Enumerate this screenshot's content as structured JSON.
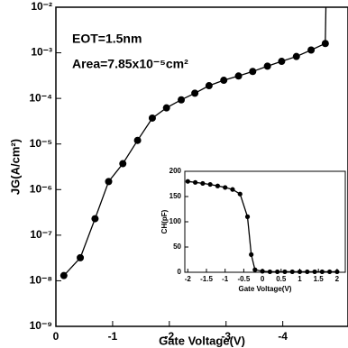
{
  "chart_data": [
    {
      "type": "line",
      "xlabel": "Gate Voltage(V)",
      "ylabel": "JG(A/cm²)",
      "annotations": [
        "EOT=1.5nm",
        "Area=7.85x10⁻⁵cm²"
      ],
      "xlim": [
        0,
        -5.15
      ],
      "xticks": [
        0,
        -1,
        -2,
        -3,
        -4
      ],
      "ylim": [
        1e-09,
        0.01
      ],
      "log_y": true,
      "yticks": [
        {
          "value": 1e-09,
          "label": "10⁻⁹"
        },
        {
          "value": 1e-08,
          "label": "10⁻⁸"
        },
        {
          "value": 1e-07,
          "label": "10⁻⁷"
        },
        {
          "value": 1e-06,
          "label": "10⁻⁶"
        },
        {
          "value": 1e-05,
          "label": "10⁻⁵"
        },
        {
          "value": 0.0001,
          "label": "10⁻⁴"
        },
        {
          "value": 0.001,
          "label": "10⁻³"
        },
        {
          "value": 0.01,
          "label": "10⁻²"
        }
      ],
      "series": [
        {
          "color": "#000",
          "markers": true,
          "x": [
            -0.14,
            -0.43,
            -0.69,
            -0.93,
            -1.18,
            -1.44,
            -1.7,
            -1.95,
            -2.21,
            -2.45,
            -2.7,
            -2.96,
            -3.22,
            -3.47,
            -3.73,
            -3.98,
            -4.24,
            -4.5,
            -4.75
          ],
          "values": [
            1.3e-08,
            3.2e-08,
            2.3e-07,
            1.5e-06,
            3.7e-06,
            1.2e-05,
            3.7e-05,
            6.2e-05,
            9.3e-05,
            0.00013,
            0.00019,
            0.00025,
            0.00031,
            0.00039,
            0.00051,
            0.00065,
            0.00083,
            0.00115,
            0.0016
          ]
        },
        {
          "color": "#000",
          "markers": false,
          "x": [
            -4.75,
            -4.76
          ],
          "values": [
            0.0016,
            0.01
          ]
        }
      ]
    },
    {
      "type": "line",
      "xlabel": "Gate Voltage(V)",
      "ylabel": "CH(pF)",
      "xlim": [
        -2.08,
        2.22
      ],
      "xticks": [
        -2,
        -1.5,
        -1,
        -0.5,
        0,
        0.5,
        1,
        1.5,
        2
      ],
      "ylim": [
        0,
        200
      ],
      "yticks": [
        0,
        50,
        100,
        150,
        200
      ],
      "series": [
        {
          "color": "#000",
          "markers": true,
          "x": [
            -2,
            -1.8,
            -1.6,
            -1.4,
            -1.2,
            -1,
            -0.8,
            -0.6,
            -0.4,
            -0.3,
            -0.2,
            0,
            0.2,
            0.4,
            0.6,
            0.8,
            1,
            1.2,
            1.4,
            1.6,
            1.8,
            2
          ],
          "values": [
            180,
            178,
            176,
            174,
            171,
            168,
            164,
            155,
            110,
            35,
            5,
            2,
            1,
            1,
            1,
            1,
            1,
            1,
            1,
            1,
            1,
            1
          ]
        }
      ]
    }
  ]
}
